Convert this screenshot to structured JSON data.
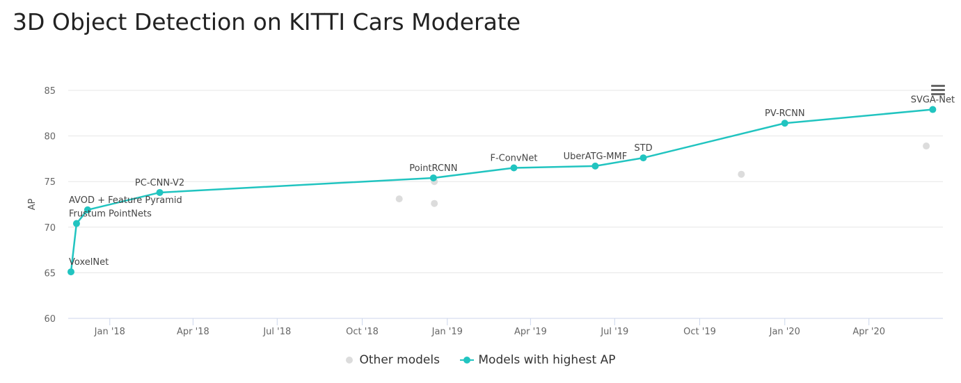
{
  "title": "3D Object Detection on KITTI Cars Moderate",
  "menu_icon": "hamburger-menu-icon",
  "colors": {
    "sota": "#21c4c0",
    "other": "#dcdcdc",
    "grid": "#e6e6e6"
  },
  "legend": {
    "other_label": "Other models",
    "sota_label": "Models with highest AP"
  },
  "chart_data": {
    "type": "scatter",
    "ylabel": "AP",
    "xlabel": "",
    "ylim": [
      60,
      85
    ],
    "xlim": [
      "2017-11-17",
      "2020-06-20"
    ],
    "y_ticks": [
      60,
      65,
      70,
      75,
      80,
      85
    ],
    "x_ticks": [
      {
        "date": "2018-01-01",
        "label": "Jan '18"
      },
      {
        "date": "2018-04-01",
        "label": "Apr '18"
      },
      {
        "date": "2018-07-01",
        "label": "Jul '18"
      },
      {
        "date": "2018-10-01",
        "label": "Oct '18"
      },
      {
        "date": "2019-01-01",
        "label": "Jan '19"
      },
      {
        "date": "2019-04-01",
        "label": "Apr '19"
      },
      {
        "date": "2019-07-01",
        "label": "Jul '19"
      },
      {
        "date": "2019-10-01",
        "label": "Oct '19"
      },
      {
        "date": "2020-01-01",
        "label": "Jan '20"
      },
      {
        "date": "2020-04-01",
        "label": "Apr '20"
      }
    ],
    "grid": true,
    "legend_position": "bottom-center",
    "series": [
      {
        "name": "Models with highest AP",
        "points": [
          {
            "date": "2017-11-20",
            "y": 65.1,
            "label": "VoxelNet"
          },
          {
            "date": "2017-11-26",
            "y": 70.4,
            "label": "Frustum PointNets"
          },
          {
            "date": "2017-12-08",
            "y": 71.9,
            "label": "AVOD + Feature Pyramid"
          },
          {
            "date": "2018-02-24",
            "y": 73.8,
            "label": "PC-CNN-V2"
          },
          {
            "date": "2018-12-17",
            "y": 75.4,
            "label": "PointRCNN"
          },
          {
            "date": "2019-03-14",
            "y": 76.5,
            "label": "F-ConvNet"
          },
          {
            "date": "2019-06-10",
            "y": 76.7,
            "label": "UberATG-MMF"
          },
          {
            "date": "2019-08-01",
            "y": 77.6,
            "label": "STD"
          },
          {
            "date": "2020-01-01",
            "y": 81.4,
            "label": "PV-RCNN"
          },
          {
            "date": "2020-06-09",
            "y": 82.9,
            "label": "SVGA-Net"
          }
        ]
      },
      {
        "name": "Other models",
        "points": [
          {
            "date": "2018-11-10",
            "y": 73.1
          },
          {
            "date": "2018-12-18",
            "y": 72.6
          },
          {
            "date": "2018-12-18",
            "y": 75.0
          },
          {
            "date": "2019-11-15",
            "y": 75.8
          },
          {
            "date": "2020-06-02",
            "y": 78.9
          }
        ]
      }
    ]
  }
}
